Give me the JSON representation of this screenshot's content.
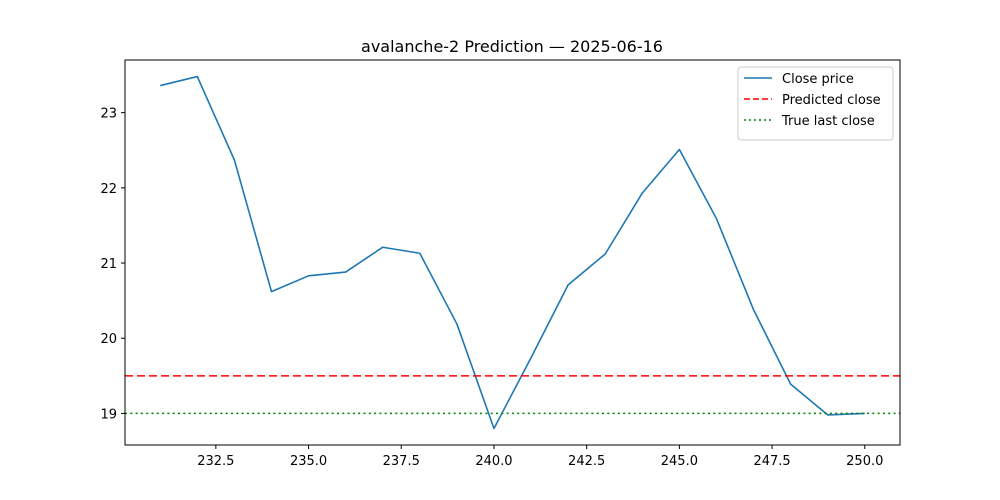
{
  "chart_data": {
    "type": "line",
    "title": "avalanche-2 Prediction — 2025-06-16",
    "xlabel": "",
    "ylabel": "",
    "xlim": [
      230.05,
      250.95
    ],
    "ylim": [
      18.58,
      23.7
    ],
    "xticks": [
      232.5,
      235.0,
      237.5,
      240.0,
      242.5,
      245.0,
      247.5,
      250.0
    ],
    "xtick_labels": [
      "232.5",
      "235.0",
      "237.5",
      "240.0",
      "242.5",
      "245.0",
      "247.5",
      "250.0"
    ],
    "yticks": [
      19,
      20,
      21,
      22,
      23
    ],
    "ytick_labels": [
      "19",
      "20",
      "21",
      "22",
      "23"
    ],
    "grid": false,
    "legend_position": "top-right",
    "series": [
      {
        "name": "Close price",
        "style": "solid",
        "color": "#1f77b4",
        "x": [
          231,
          232,
          233,
          234,
          235,
          236,
          237,
          238,
          239,
          240,
          241,
          242,
          243,
          244,
          245,
          246,
          247,
          248,
          249,
          250
        ],
        "y": [
          23.36,
          23.48,
          22.37,
          20.62,
          20.83,
          20.88,
          21.21,
          21.13,
          20.19,
          18.8,
          19.74,
          20.71,
          21.12,
          21.93,
          22.51,
          21.59,
          20.38,
          19.39,
          18.98,
          19.0
        ]
      },
      {
        "name": "Predicted close",
        "style": "dashed",
        "color": "#ff0000",
        "hline": 19.5
      },
      {
        "name": "True last close",
        "style": "dotted",
        "color": "#008000",
        "hline": 19.0
      }
    ]
  }
}
